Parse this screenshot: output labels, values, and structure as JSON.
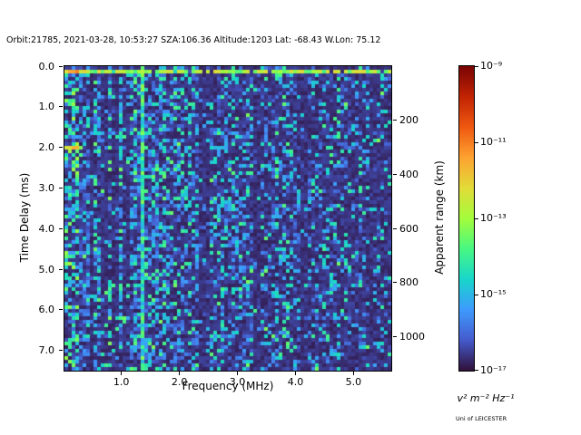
{
  "chart_data": {
    "type": "heatmap",
    "title": "Orbit:21785, 2021-03-28, 10:53:27 SZA:106.36 Altitude:1203 Lat: -68.43 W.Lon: 75.12",
    "xlabel": "Frequency (MHz)",
    "ylabel": "Time Delay (ms)",
    "y2label": "Apparent range (km)",
    "xlim": [
      0.02,
      5.65
    ],
    "ylim": [
      0.0,
      7.5
    ],
    "x_ticks": [
      1.0,
      2.0,
      3.0,
      4.0,
      5.0
    ],
    "y_ticks": [
      0.0,
      1.0,
      2.0,
      3.0,
      4.0,
      5.0,
      6.0,
      7.0
    ],
    "y2_ticks_km": [
      200,
      400,
      600,
      800,
      1000
    ],
    "km_per_ms": 150,
    "grid_on": false,
    "colorbar": {
      "scale": "log",
      "min_exponent": -17,
      "max_exponent": -9,
      "tick_exponents": [
        -9,
        -11,
        -13,
        -15,
        -17
      ],
      "tick_labels": [
        "10⁻⁹",
        "10⁻¹¹",
        "10⁻¹³",
        "10⁻¹⁵",
        "10⁻¹⁷"
      ],
      "unit_label": "v² m⁻² Hz⁻¹",
      "colormap": "turbo"
    },
    "features": {
      "background_level": "1e-17",
      "speckle_level": "1e-16..1e-15",
      "surface_echo_ms": 0.12,
      "plasma_line_ms": 2.0,
      "plasma_line_max_mhz": 0.35,
      "vertical_line_mhz": 1.35,
      "dark_bands_mhz": [
        0.5,
        0.7,
        0.9,
        1.1,
        2.4,
        2.5,
        3.35,
        4.15,
        5.3
      ],
      "dense_noise_below_mhz": 1.35
    },
    "grid": {
      "cols": 90,
      "rows": 84,
      "seed": 421785
    },
    "credit": "Uni of LEICESTER"
  }
}
